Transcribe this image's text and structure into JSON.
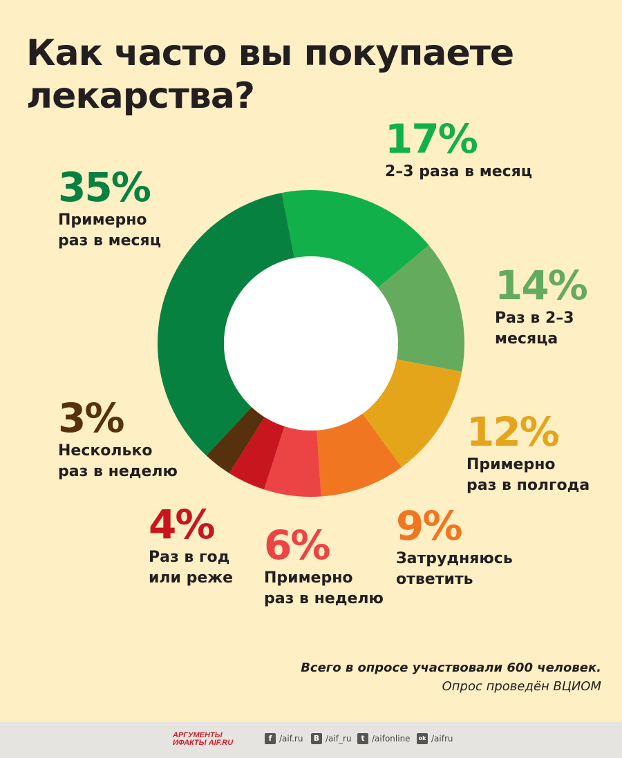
{
  "title_lines": [
    "Как часто вы покупаете",
    "лекарства?"
  ],
  "chart_data": {
    "type": "pie",
    "donut": true,
    "title": "Как часто вы покупаете лекарства?",
    "slices": [
      {
        "label": "2–3 раза в месяц",
        "value": 17,
        "percent_label": "17%",
        "color": "#12b04a"
      },
      {
        "label": "Раз в 2–3 месяца",
        "value": 14,
        "percent_label": "14%",
        "color": "#64ab5e"
      },
      {
        "label": "Примерно раз в полгода",
        "value": 12,
        "percent_label": "12%",
        "color": "#e4a51a"
      },
      {
        "label": "Затрудняюсь ответить",
        "value": 9,
        "percent_label": "9%",
        "color": "#f07622"
      },
      {
        "label": "Примерно раз в неделю",
        "value": 6,
        "percent_label": "6%",
        "color": "#ec4345"
      },
      {
        "label": "Раз в год или реже",
        "value": 4,
        "percent_label": "4%",
        "color": "#c8161e"
      },
      {
        "label": "Несколько раз в неделю",
        "value": 3,
        "percent_label": "3%",
        "color": "#57300d"
      },
      {
        "label": "Примерно раз в месяц",
        "value": 35,
        "percent_label": "35%",
        "color": "#078140"
      }
    ]
  },
  "labels": {
    "s17": {
      "pct": "17%",
      "text": "2–3 раза в месяц",
      "color": "#12b04a"
    },
    "s14": {
      "pct": "14%",
      "text": "Раз в 2–3\nмесяца",
      "color": "#64ab5e"
    },
    "s12": {
      "pct": "12%",
      "text": "Примерно\nраз в полгода",
      "color": "#e4a51a"
    },
    "s9": {
      "pct": "9%",
      "text": "Затрудняюсь\nответить",
      "color": "#f07622"
    },
    "s6": {
      "pct": "6%",
      "text": "Примерно\nраз в неделю",
      "color": "#ec4345"
    },
    "s4": {
      "pct": "4%",
      "text": "Раз в год\nили реже",
      "color": "#c8161e"
    },
    "s3": {
      "pct": "3%",
      "text": "Несколько\nраз в неделю",
      "color": "#57300d"
    },
    "s35": {
      "pct": "35%",
      "text": "Примерно\nраз в месяц",
      "color": "#078140"
    }
  },
  "footer": {
    "note_bold": "Всего в опросе участвовали 600 человек.",
    "note": "Опрос проведён ВЦИОМ"
  },
  "bottom_bar": {
    "logo_line1": "АРГУМЕНТЫ",
    "logo_line2": "ИФАКТЫ AIF.RU",
    "links": [
      {
        "icon": "f",
        "text": "/aif.ru",
        "icon_name": "facebook-icon"
      },
      {
        "icon": "В",
        "text": "/aif_ru",
        "icon_name": "vk-icon"
      },
      {
        "icon": "t",
        "text": "/aifonline",
        "icon_name": "twitter-icon"
      },
      {
        "icon": "ok",
        "text": "/aifru",
        "icon_name": "odnoklassniki-icon"
      }
    ]
  }
}
